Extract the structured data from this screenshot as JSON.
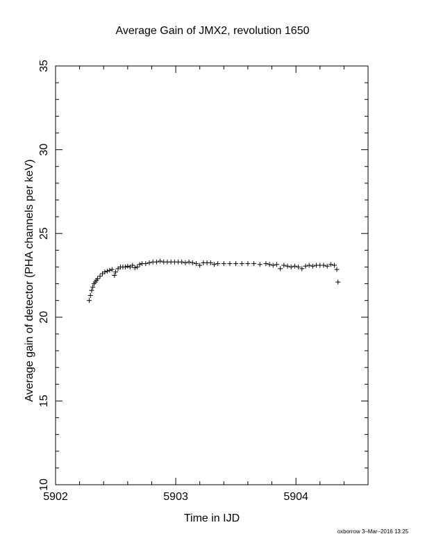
{
  "chart_data": {
    "type": "scatter",
    "title": "Average Gain of JMX2, revolution 1650",
    "xlabel": "Time in IJD",
    "ylabel": "Average gain of detector (PHA channels per keV)",
    "xlim": [
      5902,
      5904.6
    ],
    "ylim": [
      10,
      35
    ],
    "xticks": [
      5902,
      5903,
      5904
    ],
    "yticks": [
      10,
      15,
      20,
      25,
      30,
      35
    ],
    "xtick_labels": [
      "5902",
      "5903",
      "5904"
    ],
    "ytick_labels": [
      "10",
      "15",
      "20",
      "25",
      "30",
      "35"
    ],
    "marker": "plus",
    "color": "#000000",
    "grid": false,
    "series": [
      {
        "x": [
          5902.28,
          5902.29,
          5902.3,
          5902.31,
          5902.32,
          5902.33,
          5902.34,
          5902.35,
          5902.37,
          5902.39,
          5902.41,
          5902.43,
          5902.45,
          5902.47,
          5902.49,
          5902.5,
          5902.52,
          5902.54,
          5902.56,
          5902.58,
          5902.6,
          5902.62,
          5902.64,
          5902.66,
          5902.68,
          5902.7,
          5902.72,
          5902.75,
          5902.78,
          5902.81,
          5902.84,
          5902.87,
          5902.9,
          5902.93,
          5902.96,
          5902.99,
          5903.02,
          5903.05,
          5903.08,
          5903.11,
          5903.14,
          5903.17,
          5903.2,
          5903.23,
          5903.26,
          5903.29,
          5903.32,
          5903.35,
          5903.4,
          5903.45,
          5903.5,
          5903.55,
          5903.6,
          5903.65,
          5903.7,
          5903.75,
          5903.78,
          5903.81,
          5903.84,
          5903.87,
          5903.9,
          5903.93,
          5903.96,
          5903.99,
          5904.02,
          5904.05,
          5904.08,
          5904.11,
          5904.14,
          5904.17,
          5904.2,
          5904.23,
          5904.26,
          5904.29,
          5904.32,
          5904.34,
          5904.35
        ],
        "y": [
          21.0,
          21.3,
          21.6,
          21.8,
          22.0,
          22.1,
          22.2,
          22.3,
          22.45,
          22.6,
          22.7,
          22.75,
          22.8,
          22.85,
          22.5,
          22.7,
          22.9,
          23.0,
          23.0,
          23.0,
          23.05,
          23.0,
          23.1,
          22.95,
          23.0,
          23.15,
          23.2,
          23.2,
          23.25,
          23.3,
          23.3,
          23.35,
          23.3,
          23.3,
          23.3,
          23.3,
          23.3,
          23.3,
          23.25,
          23.3,
          23.25,
          23.2,
          23.1,
          23.25,
          23.25,
          23.25,
          23.15,
          23.2,
          23.2,
          23.2,
          23.2,
          23.2,
          23.2,
          23.2,
          23.15,
          23.2,
          23.15,
          23.1,
          23.15,
          22.9,
          23.1,
          23.05,
          23.0,
          23.05,
          23.0,
          22.9,
          23.05,
          23.1,
          23.05,
          23.1,
          23.1,
          23.1,
          23.05,
          23.15,
          23.1,
          22.85,
          22.1
        ]
      }
    ]
  },
  "footer": "oxborrow  3–Mar–2016 13:25"
}
